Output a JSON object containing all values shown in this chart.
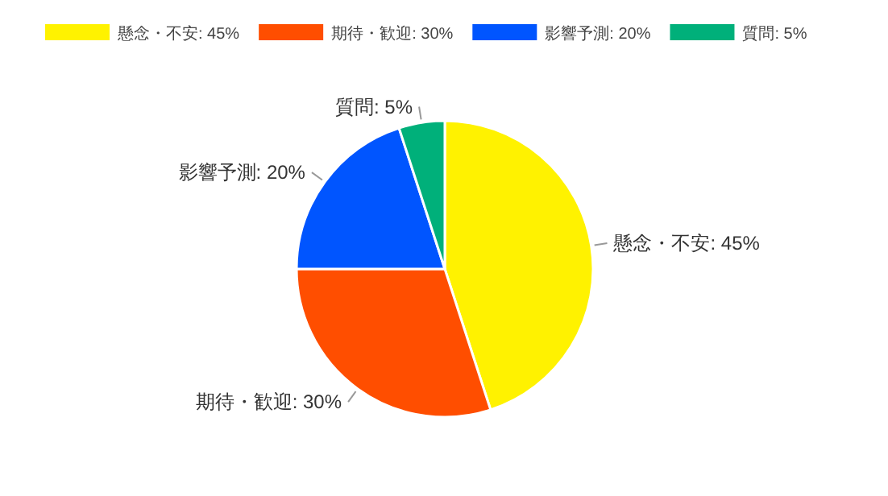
{
  "chart_data": {
    "type": "pie",
    "legend": "top",
    "categories": [
      "懸念・不安: 45%",
      "期待・歓迎: 30%",
      "影響予測: 20%",
      "質問: 5%"
    ],
    "values": [
      45,
      30,
      20,
      5
    ],
    "colors": [
      "#fff200",
      "#ff4e00",
      "#0055ff",
      "#00b07a"
    ]
  }
}
